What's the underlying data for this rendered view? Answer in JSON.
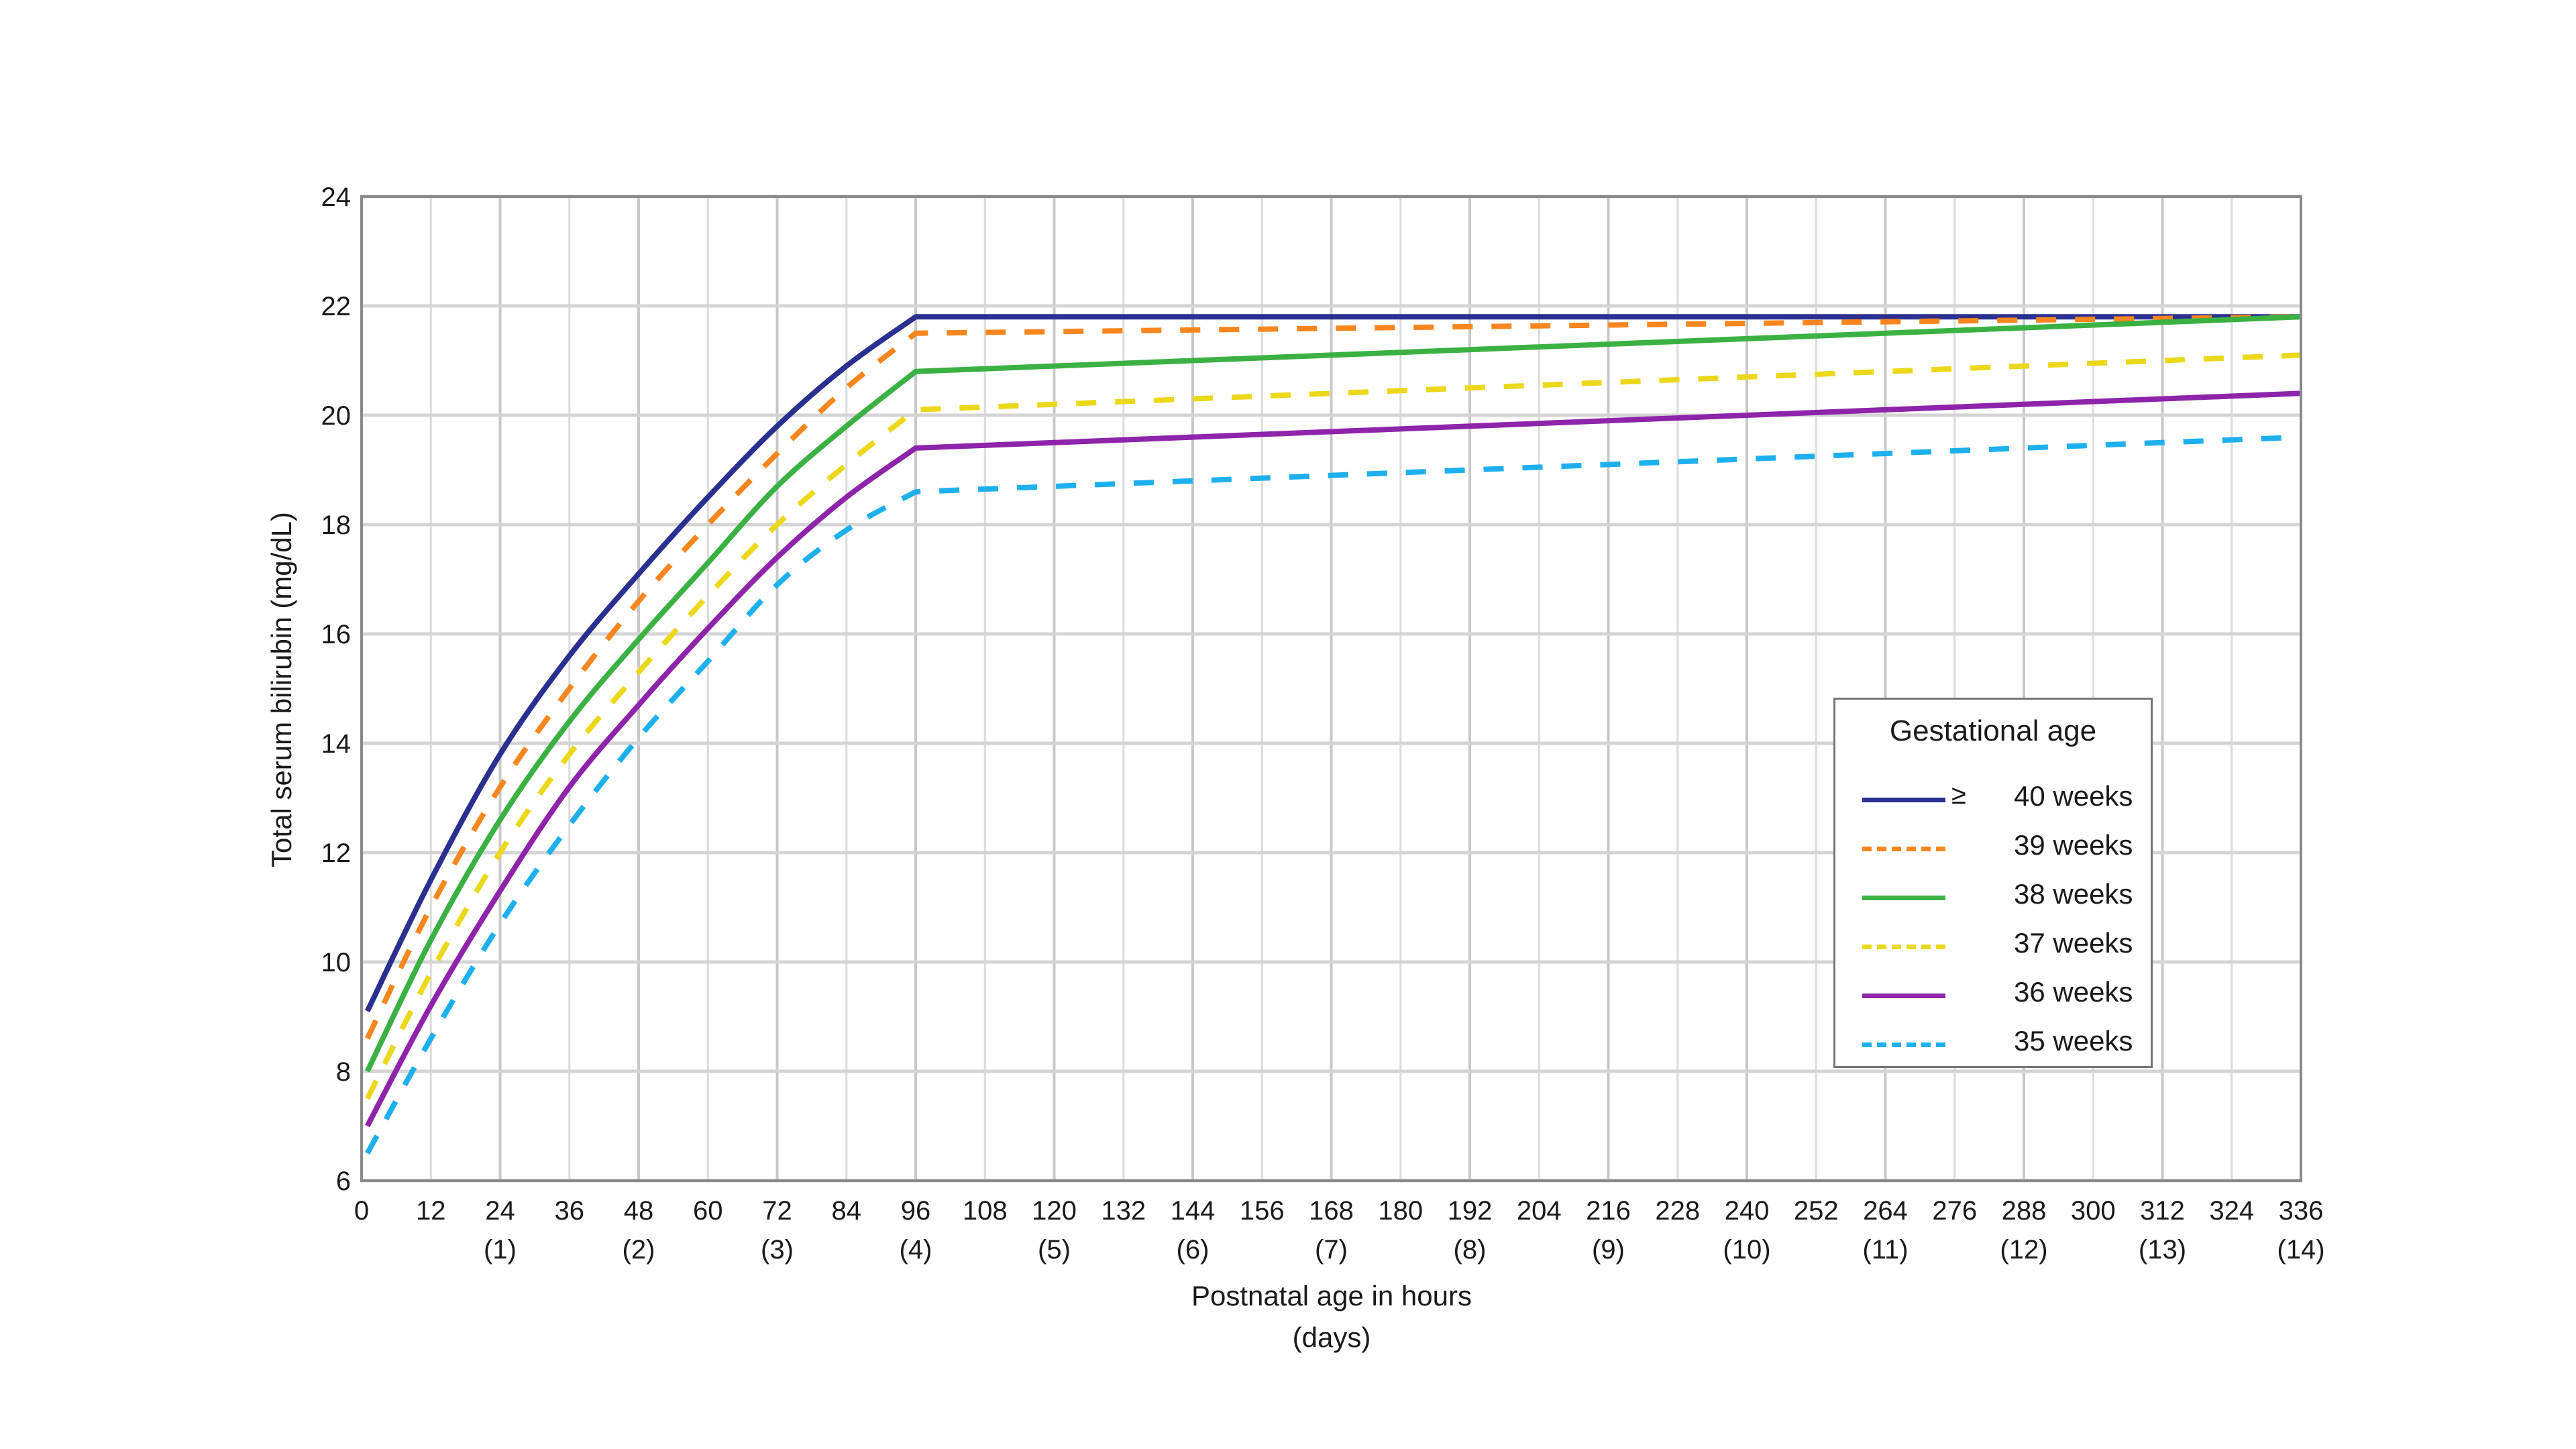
{
  "chart_data": {
    "type": "line",
    "title": "",
    "xlabel": "Postnatal age in hours",
    "xlabel_sub": "(days)",
    "ylabel": "Total serum bilirubin (mg/dL)",
    "xlim": [
      0,
      336
    ],
    "ylim": [
      6,
      24
    ],
    "grid": true,
    "x_ticks": [
      0,
      12,
      24,
      36,
      48,
      60,
      72,
      84,
      96,
      108,
      120,
      132,
      144,
      156,
      168,
      180,
      192,
      204,
      216,
      228,
      240,
      252,
      264,
      276,
      288,
      300,
      312,
      324,
      336
    ],
    "x_day_ticks": [
      {
        "x": 24,
        "label": "(1)"
      },
      {
        "x": 48,
        "label": "(2)"
      },
      {
        "x": 72,
        "label": "(3)"
      },
      {
        "x": 96,
        "label": "(4)"
      },
      {
        "x": 120,
        "label": "(5)"
      },
      {
        "x": 144,
        "label": "(6)"
      },
      {
        "x": 168,
        "label": "(7)"
      },
      {
        "x": 192,
        "label": "(8)"
      },
      {
        "x": 216,
        "label": "(9)"
      },
      {
        "x": 240,
        "label": "(10)"
      },
      {
        "x": 264,
        "label": "(11)"
      },
      {
        "x": 288,
        "label": "(12)"
      },
      {
        "x": 312,
        "label": "(13)"
      },
      {
        "x": 336,
        "label": "(14)"
      }
    ],
    "y_ticks": [
      6,
      8,
      10,
      12,
      14,
      16,
      18,
      20,
      22,
      24
    ],
    "legend": {
      "title": "Gestational age",
      "position": "right-center"
    },
    "x": [
      1,
      12,
      24,
      36,
      48,
      60,
      72,
      84,
      96,
      336
    ],
    "series": [
      {
        "name": "40 weeks",
        "prefix": "≥",
        "color": "#2b2f8f",
        "dash": false,
        "values": [
          9.1,
          11.5,
          13.8,
          15.6,
          17.1,
          18.5,
          19.8,
          20.9,
          21.8,
          21.8
        ]
      },
      {
        "name": "39 weeks",
        "prefix": "",
        "color": "#f7861e",
        "dash": true,
        "values": [
          8.6,
          11.0,
          13.2,
          15.0,
          16.6,
          18.0,
          19.3,
          20.5,
          21.5,
          21.8
        ]
      },
      {
        "name": "38 weeks",
        "prefix": "",
        "color": "#3bb143",
        "dash": false,
        "values": [
          8.0,
          10.4,
          12.6,
          14.4,
          15.9,
          17.3,
          18.7,
          19.8,
          20.8,
          21.8
        ]
      },
      {
        "name": "37 weeks",
        "prefix": "",
        "color": "#ecd81a",
        "dash": true,
        "values": [
          7.5,
          9.8,
          12.0,
          13.8,
          15.3,
          16.7,
          18.0,
          19.1,
          20.1,
          21.1
        ]
      },
      {
        "name": "36 weeks",
        "prefix": "",
        "color": "#8e24aa",
        "dash": false,
        "values": [
          7.0,
          9.2,
          11.3,
          13.2,
          14.7,
          16.1,
          17.4,
          18.5,
          19.4,
          20.4
        ]
      },
      {
        "name": "35 weeks",
        "prefix": "",
        "color": "#1eb0ec",
        "dash": true,
        "values": [
          6.5,
          8.6,
          10.7,
          12.5,
          14.1,
          15.5,
          16.9,
          17.9,
          18.6,
          19.6
        ]
      }
    ]
  }
}
